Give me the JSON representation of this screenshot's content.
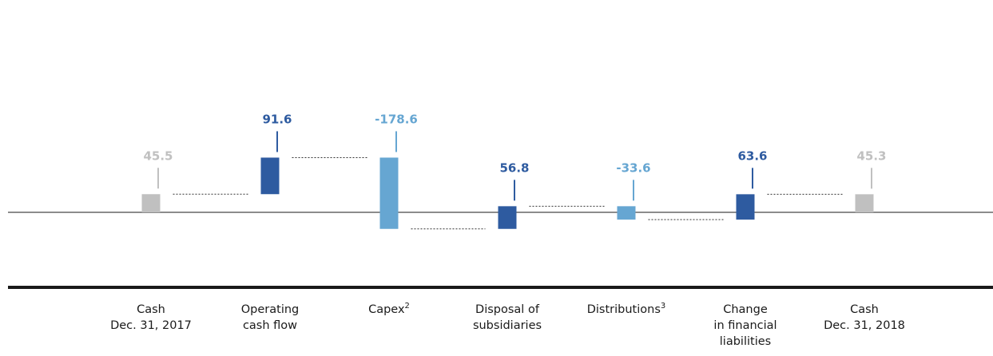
{
  "chart_data": {
    "type": "bar",
    "subtype": "waterfall",
    "categories": [
      {
        "lines": [
          "Cash",
          "Dec. 31, 2017"
        ],
        "sup": ""
      },
      {
        "lines": [
          "Operating",
          "cash flow"
        ],
        "sup": ""
      },
      {
        "lines": [
          "Capex"
        ],
        "sup": "2"
      },
      {
        "lines": [
          "Disposal of",
          "subsidiaries"
        ],
        "sup": ""
      },
      {
        "lines": [
          "Distributions"
        ],
        "sup": "3"
      },
      {
        "lines": [
          "Change",
          "in financial",
          "liabilities"
        ],
        "sup": ""
      },
      {
        "lines": [
          "Cash",
          "Dec. 31, 2018"
        ],
        "sup": ""
      }
    ],
    "values": [
      45.5,
      91.6,
      -178.6,
      56.8,
      -33.6,
      63.6,
      45.3
    ],
    "labels": [
      "45.5",
      "91.6",
      "-178.6",
      "56.8",
      "-33.6",
      "63.6",
      "45.3"
    ],
    "kinds": [
      "total",
      "increase",
      "decrease",
      "increase",
      "decrease",
      "increase",
      "total"
    ],
    "colors": {
      "total": "#c0c0c0",
      "increase": "#2e5ba0",
      "decrease": "#66a6d2",
      "axis": "#1a1a1a",
      "connector": "#333333"
    }
  }
}
